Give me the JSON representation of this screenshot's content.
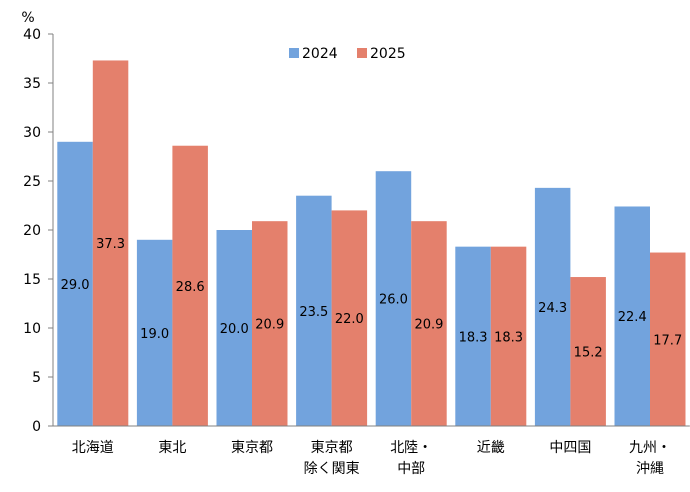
{
  "chart_data": {
    "type": "bar",
    "ylabel": "%",
    "ylim": [
      0,
      40
    ],
    "yticks": [
      0,
      5,
      10,
      15,
      20,
      25,
      30,
      35,
      40
    ],
    "grid": false,
    "legend_position": "top-center",
    "categories": [
      [
        "北海道"
      ],
      [
        "東北"
      ],
      [
        "東京都"
      ],
      [
        "東京都",
        "除く関東"
      ],
      [
        "北陸・",
        "中部"
      ],
      [
        "近畿"
      ],
      [
        "中四国"
      ],
      [
        "九州・",
        "沖縄"
      ]
    ],
    "series": [
      {
        "name": "2024",
        "color": "#72a3dd",
        "values": [
          29.0,
          19.0,
          20.0,
          23.5,
          26.0,
          18.3,
          24.3,
          22.4
        ],
        "labels": [
          "29.0",
          "19.0",
          "20.0",
          "23.5",
          "26.0",
          "18.3",
          "24.3",
          "22.4"
        ]
      },
      {
        "name": "2025",
        "color": "#e4806c",
        "values": [
          37.3,
          28.6,
          20.9,
          22.0,
          20.9,
          18.3,
          15.2,
          17.7
        ],
        "labels": [
          "37.3",
          "28.6",
          "20.9",
          "22.0",
          "20.9",
          "18.3",
          "15.2",
          "17.7"
        ]
      }
    ]
  }
}
